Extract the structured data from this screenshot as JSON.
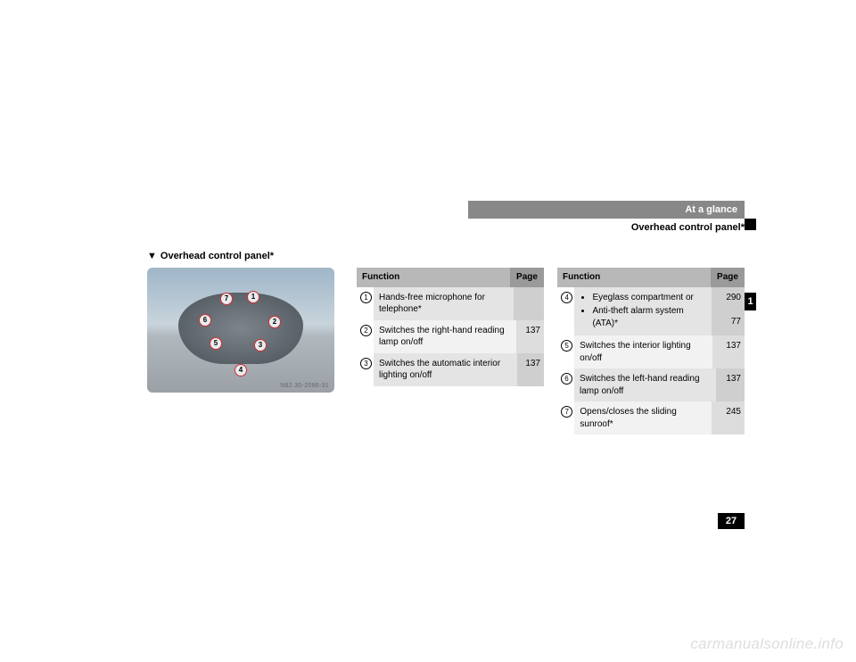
{
  "header": {
    "section": "At a glance",
    "subtitle": "Overhead control panel*",
    "side_tab": "1",
    "page_number": "27"
  },
  "section": {
    "marker": "▼",
    "title": "Overhead control panel*"
  },
  "photo": {
    "callouts": [
      "1",
      "2",
      "3",
      "4",
      "5",
      "6",
      "7"
    ],
    "code": "N82.30-2086-31"
  },
  "table_left": {
    "head_function": "Function",
    "head_page": "Page",
    "rows": [
      {
        "num": "1",
        "text": "Hands-free microphone for telephone*",
        "page": ""
      },
      {
        "num": "2",
        "text": "Switches the right-hand reading lamp on/off",
        "page": "137"
      },
      {
        "num": "3",
        "text": "Switches the automatic interior lighting on/off",
        "page": "137"
      }
    ]
  },
  "table_right": {
    "head_function": "Function",
    "head_page": "Page",
    "rows": [
      {
        "num": "4",
        "bullets": [
          "Eyeglass compartment or",
          "Anti-theft alarm system (ATA)*"
        ],
        "pages": [
          "290",
          "77"
        ]
      },
      {
        "num": "5",
        "text": "Switches the interior lighting on/off",
        "page": "137"
      },
      {
        "num": "6",
        "text": "Switches the left-hand reading lamp on/off",
        "page": "137"
      },
      {
        "num": "7",
        "text": "Opens/closes the sliding sunroof*",
        "page": "245"
      }
    ]
  },
  "watermark": "carmanualsonline.info",
  "colors": {
    "header_bar": "#888888",
    "black": "#000000",
    "th_func_bg": "#b8b8b8",
    "th_page_bg": "#9a9a9a",
    "td_func_bg": "#e4e4e4",
    "td_page_bg": "#cfcfcf",
    "td_func_alt_bg": "#f2f2f2",
    "td_page_alt_bg": "#dddddd",
    "watermark_color": "#dddddd"
  }
}
